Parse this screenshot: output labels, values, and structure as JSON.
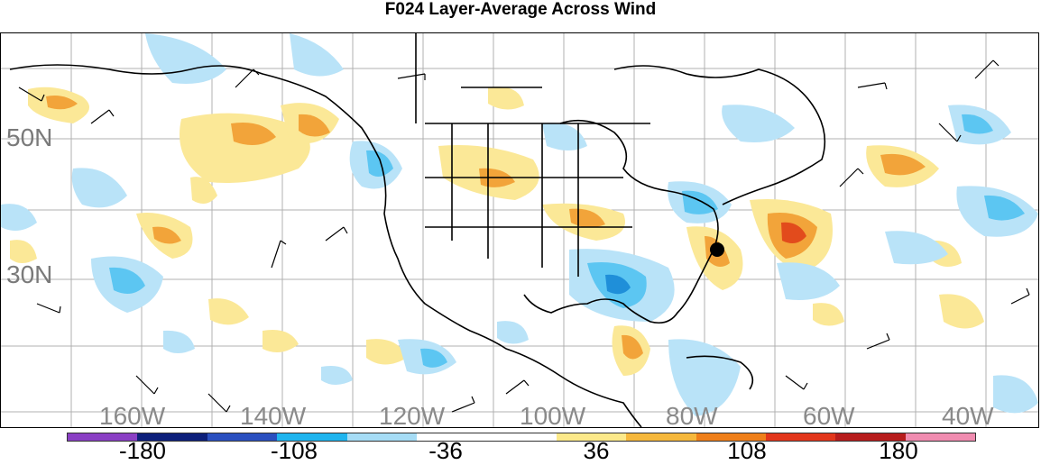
{
  "title": "F024 Layer-Average Across Wind",
  "lat_labels": [
    "50N",
    "30N"
  ],
  "lon_labels": [
    "160W",
    "140W",
    "120W",
    "100W",
    "80W",
    "60W",
    "40W"
  ],
  "colorbar": {
    "labels": [
      "-180",
      "-108",
      "-36",
      "36",
      "108",
      "180"
    ],
    "colors": [
      "#8a3fc4",
      "#0d1f7a",
      "#2a4fbf",
      "#1fb4ee",
      "#a6dcf5",
      "#ffffff",
      "#ffffff",
      "#fce98a",
      "#f6b83c",
      "#ef7f1a",
      "#e2361b",
      "#b71c1c",
      "#f08cb0"
    ]
  },
  "shading_colors": {
    "light_blue": "#b9e3f8",
    "mid_blue": "#5cc6f2",
    "deep_blue": "#1f8fd9",
    "light_yellow": "#fbe897",
    "orange": "#f2a43a",
    "red_orange": "#e24b1c"
  }
}
